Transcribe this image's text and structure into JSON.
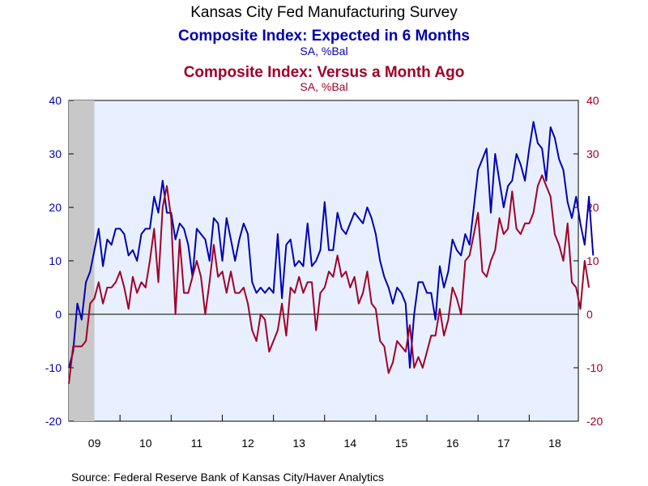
{
  "chart_data": {
    "type": "line",
    "title": "Kansas City Fed Manufacturing Survey",
    "subtitles": [
      {
        "text": "Composite Index: Expected in 6 Months",
        "units": "SA, %Bal",
        "color": "#0000b4"
      },
      {
        "text": "Composite Index: Versus a Month Ago",
        "units": "SA, %Bal",
        "color": "#a00028"
      }
    ],
    "source": "Source:  Federal Reserve Bank of Kansas City/Haver Analytics",
    "x_ticks": [
      "09",
      "10",
      "11",
      "12",
      "13",
      "14",
      "15",
      "16",
      "17",
      "18"
    ],
    "x_range": [
      2009.0,
      2018.96
    ],
    "ylim": [
      -20,
      40
    ],
    "y_ticks": [
      -20,
      -10,
      0,
      10,
      20,
      30,
      40
    ],
    "grid": false,
    "background_color": "#e8f0ff",
    "shaded_recession": [
      2009.0,
      2009.5
    ],
    "series": [
      {
        "name": "Composite Index: Expected in 6 Months",
        "color": "#0000b4",
        "start": 2009.0,
        "values": [
          -10,
          -7,
          2,
          -1,
          6,
          8,
          12,
          16,
          9,
          14,
          13,
          16,
          16,
          15,
          11,
          12,
          10,
          15,
          16,
          16,
          22,
          19,
          25,
          19,
          19,
          14,
          17,
          16,
          13,
          7,
          16,
          15,
          14,
          10,
          18,
          17,
          10,
          18,
          14,
          10,
          14,
          17,
          15,
          6,
          4,
          5,
          4,
          5,
          4,
          15,
          3,
          13,
          14,
          9,
          10,
          9,
          17,
          9,
          10,
          12,
          21,
          12,
          12,
          19,
          16,
          15,
          17,
          19,
          18,
          17,
          20,
          18,
          15,
          10,
          7,
          5,
          2,
          5,
          4,
          2,
          -10,
          0,
          6,
          6,
          4,
          4,
          -1,
          9,
          5,
          8,
          14,
          12,
          11,
          15,
          13,
          20,
          27,
          29,
          31,
          19,
          30,
          25,
          20,
          24,
          25,
          30,
          28,
          25,
          31,
          36,
          32,
          31,
          25,
          35,
          33,
          29,
          27,
          21,
          18,
          22,
          17,
          13,
          22,
          11
        ],
        "point_dates": "monthly starting Jan 2009"
      },
      {
        "name": "Composite Index: Versus a Month Ago",
        "color": "#a00028",
        "start": 2009.0,
        "values": [
          -13,
          -6,
          -6,
          -6,
          -5,
          2,
          3,
          6,
          2,
          5,
          5,
          6,
          8,
          5,
          1,
          7,
          4,
          6,
          5,
          10,
          16,
          6,
          20,
          24,
          18,
          0,
          14,
          4,
          4,
          7,
          10,
          7,
          0,
          6,
          13,
          7,
          8,
          4,
          8,
          4,
          4,
          5,
          2,
          -3,
          -5,
          0,
          -1,
          -7,
          -5,
          -3,
          2,
          -4,
          5,
          4,
          7,
          4,
          6,
          6,
          -3,
          4,
          5,
          8,
          7,
          11,
          7,
          8,
          5,
          7,
          2,
          4,
          8,
          2,
          1,
          -5,
          -6,
          -11,
          -9,
          -5,
          -6,
          -7,
          -2,
          -10,
          -8,
          -10,
          -7,
          -4,
          -4,
          1,
          -4,
          -1,
          5,
          3,
          0,
          10,
          11,
          15,
          19,
          8,
          7,
          10,
          12,
          18,
          15,
          16,
          23,
          16,
          15,
          17,
          17,
          19,
          24,
          26,
          24,
          22,
          15,
          13,
          10,
          17,
          6,
          5,
          1,
          10,
          5
        ],
        "point_dates": "monthly starting Jan 2009"
      }
    ]
  }
}
